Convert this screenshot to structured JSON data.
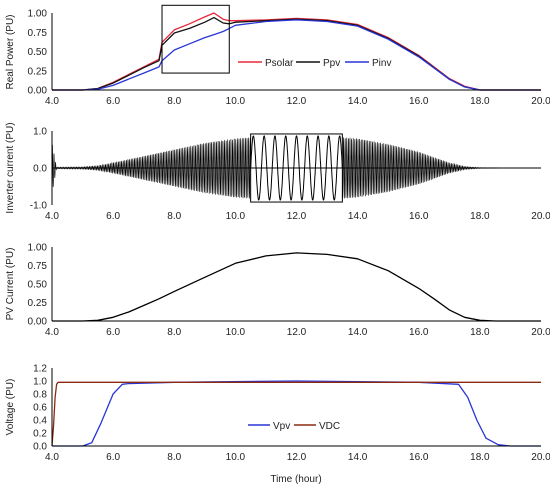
{
  "chart_data": [
    {
      "type": "line",
      "ylabel": "Real Power  (PU)",
      "xlim": [
        4.0,
        20.0
      ],
      "ylim": [
        0.0,
        1.0
      ],
      "xticks": [
        "4.0",
        "6.0",
        "8.0",
        "10.0",
        "12.0",
        "14.0",
        "16.0",
        "18.0",
        "20.0"
      ],
      "yticks": [
        "0.00",
        "0.25",
        "0.50",
        "0.75",
        "1.00"
      ],
      "legend": "top-right",
      "inset_box": {
        "x": [
          7.6,
          9.8
        ],
        "y": [
          0.22,
          1.1
        ]
      },
      "x": [
        4.0,
        5.0,
        5.5,
        6.0,
        6.5,
        7.0,
        7.5,
        7.6,
        8.0,
        8.5,
        9.0,
        9.3,
        9.6,
        9.8,
        10.0,
        11.0,
        12.0,
        13.0,
        14.0,
        15.0,
        16.0,
        17.0,
        17.5,
        18.0,
        18.5,
        20.0
      ],
      "series": [
        {
          "name": "Psolar",
          "color": "#e8283a",
          "values": [
            0.0,
            0.0,
            0.02,
            0.1,
            0.2,
            0.3,
            0.4,
            0.62,
            0.78,
            0.86,
            0.95,
            1.0,
            0.92,
            0.9,
            0.9,
            0.91,
            0.93,
            0.91,
            0.85,
            0.68,
            0.45,
            0.15,
            0.05,
            0.0,
            0.0,
            0.0
          ]
        },
        {
          "name": "Ppv",
          "color": "#111111",
          "values": [
            0.0,
            0.0,
            0.02,
            0.09,
            0.19,
            0.29,
            0.38,
            0.58,
            0.74,
            0.8,
            0.88,
            0.94,
            0.87,
            0.86,
            0.88,
            0.9,
            0.92,
            0.9,
            0.84,
            0.67,
            0.44,
            0.14,
            0.04,
            0.0,
            0.0,
            0.0
          ]
        },
        {
          "name": "Pinv",
          "color": "#2a35d6",
          "values": [
            0.0,
            0.0,
            0.01,
            0.06,
            0.14,
            0.22,
            0.3,
            0.38,
            0.52,
            0.6,
            0.68,
            0.72,
            0.76,
            0.8,
            0.84,
            0.89,
            0.91,
            0.89,
            0.83,
            0.66,
            0.43,
            0.14,
            0.04,
            0.0,
            0.0,
            0.0
          ]
        }
      ]
    },
    {
      "type": "line",
      "ylabel": "Inverter current  (PU)",
      "xlim": [
        4.0,
        20.0
      ],
      "ylim": [
        -1.0,
        1.0
      ],
      "xticks": [
        "4.0",
        "6.0",
        "8.0",
        "10.0",
        "12.0",
        "14.0",
        "16.0",
        "18.0",
        "20.0"
      ],
      "yticks": [
        "1.0",
        "0.0",
        "-1.0"
      ],
      "inset_box": {
        "x": [
          10.5,
          13.5
        ],
        "y": [
          -0.92,
          0.92
        ]
      },
      "inset_cycles": 8.5,
      "envelope": {
        "x": [
          4.0,
          5.0,
          5.5,
          6.0,
          7.0,
          8.0,
          9.0,
          10.0,
          11.0,
          12.0,
          13.0,
          14.0,
          15.0,
          16.0,
          17.0,
          17.5,
          18.0,
          20.0
        ],
        "amplitude": [
          0.02,
          0.03,
          0.06,
          0.14,
          0.32,
          0.5,
          0.68,
          0.8,
          0.86,
          0.88,
          0.86,
          0.8,
          0.65,
          0.44,
          0.14,
          0.04,
          0.01,
          0.0
        ]
      },
      "startup_spike_x": 4.0,
      "startup_spike_amplitude": 0.7,
      "series": [
        {
          "color": "#000000"
        }
      ]
    },
    {
      "type": "line",
      "ylabel": "PV Current  (PU)",
      "xlim": [
        4.0,
        20.0
      ],
      "ylim": [
        0.0,
        1.0
      ],
      "xticks": [
        "4.0",
        "6.0",
        "8.0",
        "10.0",
        "12.0",
        "14.0",
        "16.0",
        "18.0",
        "20.0"
      ],
      "yticks": [
        "0.00",
        "0.25",
        "0.50",
        "0.75",
        "1.00"
      ],
      "x": [
        4.0,
        5.0,
        5.5,
        6.0,
        6.5,
        7.0,
        7.5,
        8.0,
        9.0,
        10.0,
        11.0,
        12.0,
        13.0,
        14.0,
        15.0,
        16.0,
        16.5,
        17.0,
        17.5,
        18.0,
        18.5,
        20.0
      ],
      "series": [
        {
          "color": "#000000",
          "values": [
            0.0,
            0.0,
            0.01,
            0.05,
            0.12,
            0.21,
            0.3,
            0.4,
            0.59,
            0.78,
            0.88,
            0.92,
            0.9,
            0.84,
            0.68,
            0.44,
            0.3,
            0.15,
            0.05,
            0.01,
            0.0,
            0.0
          ]
        }
      ]
    },
    {
      "type": "line",
      "ylabel": "Voltage  (PU)",
      "xlabel": "Time (hour)",
      "xlim": [
        4.0,
        20.0
      ],
      "ylim": [
        0.0,
        1.2
      ],
      "xticks": [
        "4.0",
        "6.0",
        "8.0",
        "10.0",
        "12.0",
        "14.0",
        "16.0",
        "18.0",
        "20.0"
      ],
      "yticks": [
        "0.0",
        "0.2",
        "0.4",
        "0.6",
        "0.8",
        "1.0",
        "1.2"
      ],
      "legend": "bottom-center",
      "series": [
        {
          "name": "Vpv",
          "color": "#2a35d6",
          "x": [
            4.0,
            5.0,
            5.3,
            5.6,
            6.0,
            6.3,
            6.5,
            8.0,
            12.0,
            16.0,
            17.3,
            17.6,
            17.9,
            18.2,
            18.6,
            19.0,
            20.0
          ],
          "values": [
            0.0,
            0.0,
            0.05,
            0.35,
            0.8,
            0.95,
            0.96,
            0.98,
            1.0,
            0.98,
            0.95,
            0.75,
            0.4,
            0.12,
            0.02,
            0.0,
            0.0
          ]
        },
        {
          "name": "VDC",
          "color": "#8b2a10",
          "x": [
            4.0,
            4.05,
            4.1,
            4.15,
            4.2,
            4.3,
            6.0,
            12.0,
            18.0,
            20.0
          ],
          "values": [
            0.0,
            0.3,
            0.75,
            0.95,
            0.98,
            0.98,
            0.98,
            0.98,
            0.98,
            0.98
          ]
        }
      ]
    }
  ]
}
